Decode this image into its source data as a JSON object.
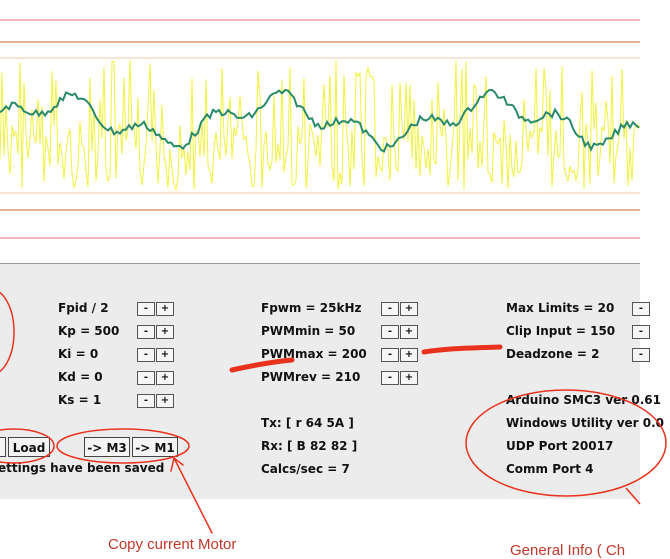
{
  "controls_panel": {
    "pid_params": [
      {
        "id": "fpid",
        "label": "Fpid / 2"
      },
      {
        "id": "kp",
        "label": "Kp = 500"
      },
      {
        "id": "ki",
        "label": "Ki = 0"
      },
      {
        "id": "kd",
        "label": "Kd = 0"
      },
      {
        "id": "ks",
        "label": "Ks = 1"
      }
    ],
    "pwm_params": [
      {
        "id": "fpwm",
        "label": "Fpwm = 25kHz"
      },
      {
        "id": "pwmmin",
        "label": "PWMmin = 50"
      },
      {
        "id": "pwmmax",
        "label": "PWMmax = 200"
      },
      {
        "id": "pwmrev",
        "label": "PWMrev = 210"
      }
    ],
    "limit_params": [
      {
        "id": "maxlimits",
        "label": "Max Limits = 20"
      },
      {
        "id": "clipinput",
        "label": "Clip Input = 150"
      },
      {
        "id": "deadzone",
        "label": "Deadzone = 2"
      }
    ],
    "stepper": {
      "minus": "-",
      "plus": "+"
    },
    "comms": {
      "tx": "Tx: [ r 64 5A ]",
      "rx": "Rx: [ B 82 82 ]",
      "calcs": "Calcs/sec = 7"
    },
    "info": {
      "arduino": "Arduino SMC3 ver 0.61",
      "windows": "Windows Utility ver 0.0",
      "udp": "UDP Port 20017",
      "comm": "Comm Port 4"
    },
    "buttons": {
      "load": "Load",
      "to_m3": "-> M3",
      "to_m1": "-> M1"
    },
    "status": "ettings have been saved"
  },
  "annotations": {
    "copy_motor": "Copy current Motor",
    "general_info": "General Info ( Ch",
    "annotation_color": "#e8321e"
  },
  "plot": {
    "background": "#ffffff",
    "limit_line_color": "#d8a070",
    "inner_line_color": "#f0c8a0",
    "signal_color": "#f2f23a",
    "feedback_color": "#2a8a6a"
  }
}
